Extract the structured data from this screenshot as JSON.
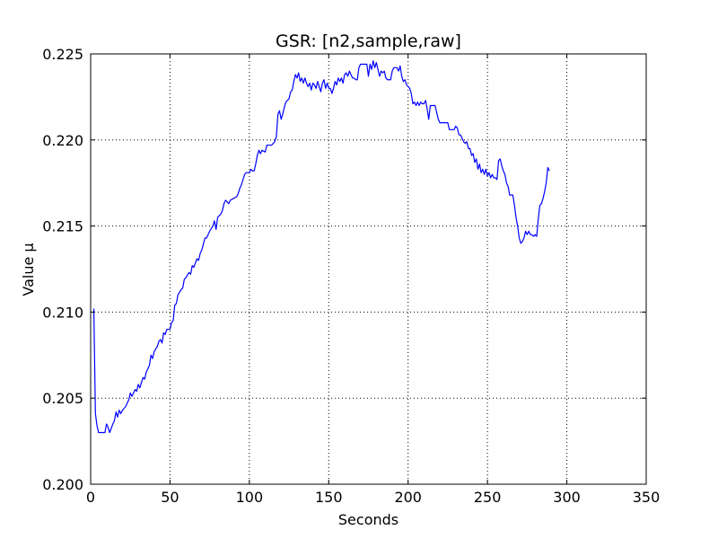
{
  "chart_data": {
    "type": "line",
    "title": "GSR: [n2,sample,raw]",
    "xlabel": "Seconds",
    "ylabel": "Value µ",
    "xlim": [
      0,
      350
    ],
    "ylim": [
      0.2,
      0.225
    ],
    "grid": true,
    "x_ticks": [
      "0",
      "50",
      "100",
      "150",
      "200",
      "250",
      "300",
      "350"
    ],
    "y_ticks": [
      "0.200",
      "0.205",
      "0.210",
      "0.215",
      "0.220",
      "0.225"
    ],
    "line_color": "#0000ff",
    "series": [
      {
        "points": [
          [
            2,
            0.2102
          ],
          [
            3,
            0.2041
          ],
          [
            4,
            0.2034
          ],
          [
            5,
            0.203
          ],
          [
            7,
            0.203
          ],
          [
            9,
            0.203
          ],
          [
            10,
            0.2035
          ],
          [
            11,
            0.2033
          ],
          [
            12,
            0.203
          ],
          [
            14,
            0.2035
          ],
          [
            15,
            0.2037
          ],
          [
            16,
            0.2042
          ],
          [
            17,
            0.2039
          ],
          [
            18,
            0.2043
          ],
          [
            19,
            0.2041
          ],
          [
            20,
            0.2043
          ],
          [
            22,
            0.2045
          ],
          [
            24,
            0.2049
          ],
          [
            25,
            0.2053
          ],
          [
            26,
            0.2051
          ],
          [
            28,
            0.2055
          ],
          [
            29,
            0.2054
          ],
          [
            30,
            0.2058
          ],
          [
            31,
            0.2056
          ],
          [
            33,
            0.2062
          ],
          [
            34,
            0.2061
          ],
          [
            35,
            0.2065
          ],
          [
            37,
            0.2069
          ],
          [
            38,
            0.2075
          ],
          [
            39,
            0.2073
          ],
          [
            40,
            0.2077
          ],
          [
            42,
            0.208
          ],
          [
            43,
            0.2083
          ],
          [
            44,
            0.2084
          ],
          [
            45,
            0.2082
          ],
          [
            46,
            0.2088
          ],
          [
            47,
            0.2087
          ],
          [
            48,
            0.209
          ],
          [
            50,
            0.209
          ],
          [
            51,
            0.2094
          ],
          [
            52,
            0.2095
          ],
          [
            53,
            0.2104
          ],
          [
            54,
            0.2105
          ],
          [
            55,
            0.211
          ],
          [
            57,
            0.2113
          ],
          [
            58,
            0.2114
          ],
          [
            59,
            0.2119
          ],
          [
            60,
            0.212
          ],
          [
            62,
            0.2123
          ],
          [
            63,
            0.2122
          ],
          [
            64,
            0.2127
          ],
          [
            65,
            0.2126
          ],
          [
            67,
            0.2131
          ],
          [
            68,
            0.213
          ],
          [
            69,
            0.2134
          ],
          [
            70,
            0.2136
          ],
          [
            72,
            0.2143
          ],
          [
            73,
            0.2143
          ],
          [
            74,
            0.2145
          ],
          [
            75,
            0.2147
          ],
          [
            77,
            0.215
          ],
          [
            78,
            0.2153
          ],
          [
            79,
            0.2148
          ],
          [
            80,
            0.2155
          ],
          [
            82,
            0.2157
          ],
          [
            83,
            0.2159
          ],
          [
            84,
            0.2163
          ],
          [
            85,
            0.2165
          ],
          [
            86,
            0.2164
          ],
          [
            87,
            0.2163
          ],
          [
            88,
            0.2165
          ],
          [
            90,
            0.2166
          ],
          [
            92,
            0.2167
          ],
          [
            93,
            0.2169
          ],
          [
            94,
            0.2172
          ],
          [
            95,
            0.2174
          ],
          [
            96,
            0.2177
          ],
          [
            97,
            0.218
          ],
          [
            98,
            0.2181
          ],
          [
            100,
            0.2181
          ],
          [
            101,
            0.2183
          ],
          [
            102,
            0.2182
          ],
          [
            103,
            0.2182
          ],
          [
            104,
            0.2186
          ],
          [
            105,
            0.2191
          ],
          [
            106,
            0.2194
          ],
          [
            107,
            0.2192
          ],
          [
            108,
            0.2194
          ],
          [
            110,
            0.2193
          ],
          [
            111,
            0.2197
          ],
          [
            112,
            0.2197
          ],
          [
            114,
            0.2197
          ],
          [
            116,
            0.2199
          ],
          [
            117,
            0.2202
          ],
          [
            118,
            0.2215
          ],
          [
            119,
            0.2217
          ],
          [
            120,
            0.2212
          ],
          [
            121,
            0.2215
          ],
          [
            122,
            0.2219
          ],
          [
            123,
            0.2222
          ],
          [
            125,
            0.2224
          ],
          [
            126,
            0.2228
          ],
          [
            127,
            0.2229
          ],
          [
            128,
            0.2234
          ],
          [
            129,
            0.2238
          ],
          [
            130,
            0.2236
          ],
          [
            131,
            0.2239
          ],
          [
            132,
            0.2234
          ],
          [
            133,
            0.2236
          ],
          [
            134,
            0.2233
          ],
          [
            135,
            0.2236
          ],
          [
            136,
            0.2233
          ],
          [
            137,
            0.2231
          ],
          [
            138,
            0.2233
          ],
          [
            139,
            0.2229
          ],
          [
            140,
            0.2233
          ],
          [
            141,
            0.2232
          ],
          [
            142,
            0.223
          ],
          [
            143,
            0.2234
          ],
          [
            144,
            0.2231
          ],
          [
            145,
            0.2228
          ],
          [
            146,
            0.2233
          ],
          [
            147,
            0.2235
          ],
          [
            148,
            0.223
          ],
          [
            149,
            0.2233
          ],
          [
            150,
            0.223
          ],
          [
            151,
            0.223
          ],
          [
            152,
            0.2227
          ],
          [
            153,
            0.223
          ],
          [
            154,
            0.2234
          ],
          [
            155,
            0.2232
          ],
          [
            156,
            0.2236
          ],
          [
            157,
            0.2234
          ],
          [
            158,
            0.2236
          ],
          [
            159,
            0.2233
          ],
          [
            160,
            0.2238
          ],
          [
            161,
            0.2239
          ],
          [
            162,
            0.2237
          ],
          [
            163,
            0.224
          ],
          [
            164,
            0.2238
          ],
          [
            165,
            0.2236
          ],
          [
            166,
            0.2236
          ],
          [
            167,
            0.2235
          ],
          [
            168,
            0.2235
          ],
          [
            169,
            0.2242
          ],
          [
            170,
            0.2244
          ],
          [
            172,
            0.2244
          ],
          [
            174,
            0.2244
          ],
          [
            175,
            0.2237
          ],
          [
            176,
            0.2244
          ],
          [
            177,
            0.2241
          ],
          [
            178,
            0.2246
          ],
          [
            179,
            0.2242
          ],
          [
            180,
            0.2245
          ],
          [
            181,
            0.2241
          ],
          [
            182,
            0.2237
          ],
          [
            183,
            0.224
          ],
          [
            184,
            0.2239
          ],
          [
            185,
            0.224
          ],
          [
            186,
            0.2236
          ],
          [
            187,
            0.2235
          ],
          [
            189,
            0.2235
          ],
          [
            190,
            0.224
          ],
          [
            191,
            0.2242
          ],
          [
            193,
            0.2242
          ],
          [
            194,
            0.224
          ],
          [
            195,
            0.2243
          ],
          [
            196,
            0.2237
          ],
          [
            197,
            0.2234
          ],
          [
            198,
            0.2235
          ],
          [
            199,
            0.2232
          ],
          [
            200,
            0.2231
          ],
          [
            201,
            0.223
          ],
          [
            202,
            0.2227
          ],
          [
            203,
            0.2221
          ],
          [
            204,
            0.2222
          ],
          [
            205,
            0.222
          ],
          [
            206,
            0.2222
          ],
          [
            207,
            0.222
          ],
          [
            208,
            0.2222
          ],
          [
            209,
            0.2221
          ],
          [
            210,
            0.2221
          ],
          [
            211,
            0.2223
          ],
          [
            212,
            0.2218
          ],
          [
            213,
            0.2212
          ],
          [
            214,
            0.222
          ],
          [
            215,
            0.222
          ],
          [
            217,
            0.222
          ],
          [
            218,
            0.2216
          ],
          [
            219,
            0.2212
          ],
          [
            220,
            0.221
          ],
          [
            222,
            0.221
          ],
          [
            224,
            0.221
          ],
          [
            225,
            0.221
          ],
          [
            226,
            0.2206
          ],
          [
            228,
            0.2206
          ],
          [
            229,
            0.2206
          ],
          [
            230,
            0.2208
          ],
          [
            231,
            0.2207
          ],
          [
            232,
            0.2203
          ],
          [
            233,
            0.2203
          ],
          [
            234,
            0.2201
          ],
          [
            235,
            0.2199
          ],
          [
            236,
            0.2198
          ],
          [
            237,
            0.2199
          ],
          [
            238,
            0.2195
          ],
          [
            239,
            0.2195
          ],
          [
            240,
            0.2191
          ],
          [
            241,
            0.2192
          ],
          [
            242,
            0.2187
          ],
          [
            243,
            0.2189
          ],
          [
            244,
            0.2183
          ],
          [
            245,
            0.2186
          ],
          [
            246,
            0.2181
          ],
          [
            247,
            0.2183
          ],
          [
            248,
            0.218
          ],
          [
            249,
            0.2183
          ],
          [
            250,
            0.2179
          ],
          [
            251,
            0.2181
          ],
          [
            252,
            0.2178
          ],
          [
            253,
            0.218
          ],
          [
            254,
            0.2178
          ],
          [
            255,
            0.2178
          ],
          [
            256,
            0.2177
          ],
          [
            257,
            0.2188
          ],
          [
            258,
            0.2189
          ],
          [
            259,
            0.2185
          ],
          [
            260,
            0.2182
          ],
          [
            261,
            0.218
          ],
          [
            262,
            0.2175
          ],
          [
            263,
            0.2173
          ],
          [
            264,
            0.2168
          ],
          [
            265,
            0.2168
          ],
          [
            266,
            0.2168
          ],
          [
            267,
            0.2162
          ],
          [
            268,
            0.2155
          ],
          [
            269,
            0.215
          ],
          [
            270,
            0.2143
          ],
          [
            271,
            0.214
          ],
          [
            272,
            0.2141
          ],
          [
            273,
            0.2143
          ],
          [
            274,
            0.2147
          ],
          [
            275,
            0.2145
          ],
          [
            276,
            0.2147
          ],
          [
            277,
            0.2145
          ],
          [
            278,
            0.2145
          ],
          [
            279,
            0.2144
          ],
          [
            280,
            0.2145
          ],
          [
            281,
            0.2144
          ],
          [
            282,
            0.2154
          ],
          [
            283,
            0.2162
          ],
          [
            284,
            0.2163
          ],
          [
            285,
            0.2166
          ],
          [
            286,
            0.217
          ],
          [
            287,
            0.2175
          ],
          [
            288,
            0.2184
          ],
          [
            289,
            0.2182
          ]
        ]
      }
    ]
  }
}
